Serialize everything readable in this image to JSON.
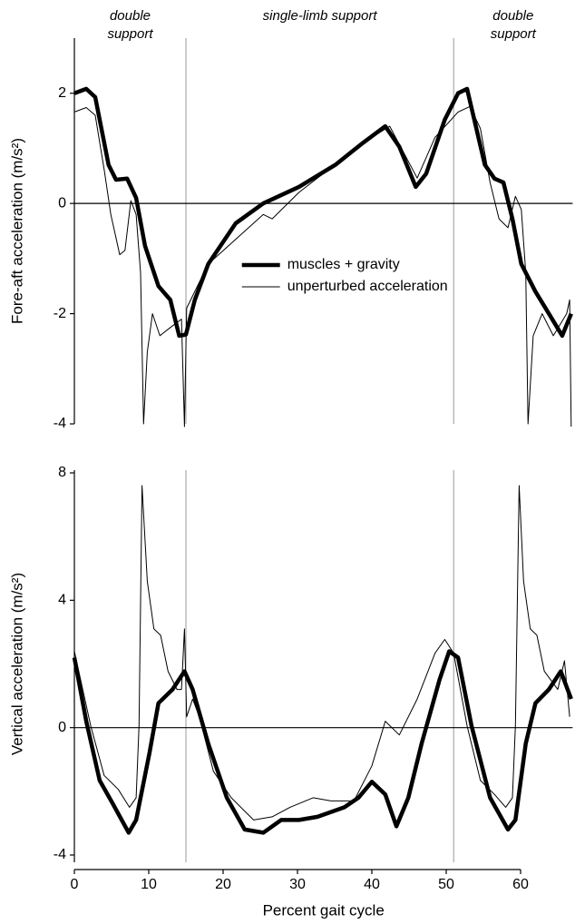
{
  "chart_data": [
    {
      "type": "line",
      "ylabel": "Fore-aft acceleration (m/s²)",
      "phase_labels": [
        [
          "double",
          "support"
        ],
        [
          "single-limb support"
        ],
        [
          "double",
          "support"
        ]
      ],
      "phase_lines": [
        15,
        51
      ],
      "xlim": [
        0,
        67
      ],
      "ylim": [
        -4,
        3
      ],
      "yticks": [
        -4,
        -2,
        0,
        2
      ],
      "legend": "lower center",
      "series": [
        {
          "name": "muscles + gravity",
          "color": "#000000",
          "x": [
            0,
            1.6,
            2.8,
            4.6,
            5.6,
            7.1,
            8.3,
            9.5,
            11.3,
            12.9,
            14.1,
            15,
            16.2,
            18,
            21.7,
            25.4,
            30.2,
            35.1,
            38.8,
            41.8,
            43.7,
            45.9,
            47.3,
            49.8,
            51.6,
            52.8,
            55.2,
            56.5,
            57.7,
            58.9,
            60.1,
            62,
            63.8,
            65.6,
            66.8
          ],
          "values": [
            2.0,
            2.08,
            1.93,
            0.7,
            0.43,
            0.45,
            0.1,
            -0.77,
            -1.5,
            -1.75,
            -2.4,
            -2.38,
            -1.75,
            -1.1,
            -0.36,
            0,
            0.3,
            0.7,
            1.1,
            1.4,
            1.03,
            0.3,
            0.54,
            1.52,
            2.0,
            2.08,
            0.7,
            0.45,
            0.38,
            -0.28,
            -1.1,
            -1.6,
            -2.0,
            -2.4,
            -2.0
          ]
        },
        {
          "name": "unperturbed acceleration",
          "color": "#000000",
          "x": [
            0,
            1.6,
            2.8,
            4,
            4.9,
            6.1,
            6.8,
            7.6,
            8.3,
            8.9,
            9.3,
            9.8,
            10.5,
            11.5,
            12.9,
            14.4,
            14.8,
            15.1,
            18,
            25.4,
            26.6,
            30.2,
            38.8,
            42.4,
            46.1,
            48.5,
            51.6,
            53.2,
            54.6,
            55.9,
            57.1,
            58.3,
            59.3,
            60.1,
            60.7,
            61,
            61.7,
            62.9,
            64.4,
            66.2,
            66.6,
            66.8
          ],
          "values": [
            1.66,
            1.74,
            1.6,
            0.62,
            -0.2,
            -0.93,
            -0.85,
            0.05,
            -0.2,
            -1.26,
            -4.0,
            -2.7,
            -2.0,
            -2.4,
            -2.25,
            -2.1,
            -4.05,
            -1.9,
            -1.1,
            -0.2,
            -0.28,
            0.2,
            1.1,
            1.4,
            0.46,
            1.2,
            1.66,
            1.76,
            1.36,
            0.38,
            -0.28,
            -0.44,
            0.13,
            -0.11,
            -1.26,
            -4.0,
            -2.4,
            -2.0,
            -2.4,
            -2.0,
            -1.75,
            -4.05
          ]
        }
      ]
    },
    {
      "type": "line",
      "ylabel": "Vertical acceleration (m/s²)",
      "xlabel": "Percent gait cycle",
      "phase_lines": [
        15,
        51
      ],
      "xlim": [
        0,
        67
      ],
      "xticks": [
        0,
        10,
        20,
        30,
        40,
        50,
        60
      ],
      "ylim": [
        -4,
        8
      ],
      "yticks": [
        -4,
        0,
        4,
        8
      ],
      "series": [
        {
          "name": "muscles + gravity",
          "color": "#000000",
          "x": [
            0,
            1.6,
            3.4,
            5.2,
            7.3,
            8.3,
            10.1,
            11.3,
            13.2,
            14.8,
            15.9,
            18,
            20.5,
            22.9,
            25.4,
            27.8,
            30.2,
            32.7,
            36.3,
            38.2,
            40,
            41.8,
            43.3,
            44.9,
            46.7,
            49.1,
            50.4,
            51.6,
            53.4,
            55.9,
            58.3,
            59.3,
            60.7,
            62,
            63.8,
            65.4,
            66.8
          ],
          "values": [
            2.2,
            0.2,
            -1.66,
            -2.4,
            -3.3,
            -2.9,
            -0.8,
            0.77,
            1.2,
            1.77,
            1.2,
            -0.5,
            -2.2,
            -3.2,
            -3.3,
            -2.9,
            -2.9,
            -2.8,
            -2.5,
            -2.2,
            -1.7,
            -2.1,
            -3.1,
            -2.2,
            -0.5,
            1.5,
            2.4,
            2.2,
            0.06,
            -2.2,
            -3.2,
            -2.9,
            -0.5,
            0.77,
            1.2,
            1.77,
            0.9
          ]
        },
        {
          "name": "unperturbed acceleration",
          "color": "#000000",
          "x": [
            0,
            2.2,
            4,
            5.9,
            7.4,
            8.3,
            8.7,
            9.1,
            9.8,
            10.7,
            11.6,
            12.6,
            13.8,
            14.4,
            14.8,
            15.1,
            15.9,
            16.8,
            18.7,
            21.1,
            24.1,
            26.6,
            29,
            32.1,
            34.5,
            37.6,
            40,
            41.8,
            43.7,
            46.1,
            48.5,
            49.8,
            51,
            52.8,
            54.6,
            56.5,
            58,
            58.9,
            59.3,
            59.8,
            60.4,
            61.3,
            62.2,
            63.2,
            65,
            65.9,
            66.6
          ],
          "values": [
            2.4,
            0.06,
            -1.5,
            -1.94,
            -2.5,
            -2.2,
            0.06,
            7.6,
            4.6,
            3.1,
            2.9,
            1.77,
            1.2,
            1.2,
            3.1,
            0.34,
            0.9,
            0.34,
            -1.37,
            -2.2,
            -2.9,
            -2.8,
            -2.5,
            -2.2,
            -2.3,
            -2.3,
            -1.2,
            0.2,
            -0.23,
            0.9,
            2.34,
            2.77,
            2.34,
            0.06,
            -1.66,
            -2.1,
            -2.5,
            -2.2,
            0.06,
            7.6,
            4.6,
            3.1,
            2.9,
            1.77,
            1.2,
            2.1,
            0.34
          ]
        }
      ]
    }
  ]
}
